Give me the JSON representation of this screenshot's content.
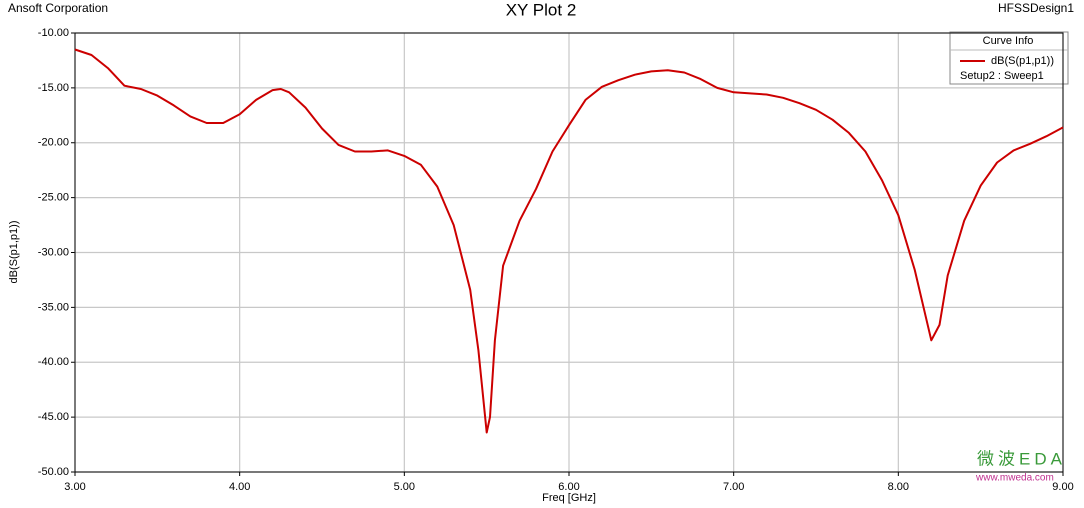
{
  "chart_data": {
    "type": "line",
    "title": "XY Plot 2",
    "company": "Ansoft Corporation",
    "design": "HFSSDesign1",
    "xlabel": "Freq [GHz]",
    "ylabel": "dB(S(p1,p1))",
    "legend_title": "Curve Info",
    "legend_subtitle": "Setup2 : Sweep1",
    "legend": "top-right",
    "grid": true,
    "annotations": [
      "微波EDA",
      "www.mweda.com"
    ],
    "xlim": [
      3,
      9
    ],
    "ylim": [
      -50,
      -10
    ],
    "xticks": [
      {
        "value": 3,
        "label": "3.00"
      },
      {
        "value": 4,
        "label": "4.00"
      },
      {
        "value": 5,
        "label": "5.00"
      },
      {
        "value": 6,
        "label": "6.00"
      },
      {
        "value": 7,
        "label": "7.00"
      },
      {
        "value": 8,
        "label": "8.00"
      },
      {
        "value": 9,
        "label": "9.00"
      }
    ],
    "yticks": [
      {
        "value": -10,
        "label": "-10.00"
      },
      {
        "value": -15,
        "label": "-15.00"
      },
      {
        "value": -20,
        "label": "-20.00"
      },
      {
        "value": -25,
        "label": "-25.00"
      },
      {
        "value": -30,
        "label": "-30.00"
      },
      {
        "value": -35,
        "label": "-35.00"
      },
      {
        "value": -40,
        "label": "-40.00"
      },
      {
        "value": -45,
        "label": "-45.00"
      },
      {
        "value": -50,
        "label": "-50.00"
      }
    ],
    "x": [
      3.0,
      3.1,
      3.2,
      3.3,
      3.4,
      3.5,
      3.6,
      3.7,
      3.8,
      3.9,
      4.0,
      4.1,
      4.2,
      4.25,
      4.3,
      4.4,
      4.5,
      4.6,
      4.7,
      4.8,
      4.9,
      5.0,
      5.1,
      5.2,
      5.3,
      5.4,
      5.45,
      5.5,
      5.52,
      5.55,
      5.6,
      5.7,
      5.8,
      5.9,
      6.0,
      6.1,
      6.2,
      6.3,
      6.4,
      6.5,
      6.6,
      6.7,
      6.8,
      6.9,
      7.0,
      7.1,
      7.2,
      7.3,
      7.4,
      7.5,
      7.6,
      7.7,
      7.8,
      7.9,
      8.0,
      8.1,
      8.2,
      8.25,
      8.3,
      8.4,
      8.5,
      8.6,
      8.7,
      8.8,
      8.9,
      9.0
    ],
    "series": [
      {
        "name": "dB(S(p1,p1))",
        "color": "#cc0000",
        "values": [
          -11.5,
          -12.0,
          -13.2,
          -14.8,
          -15.1,
          -15.7,
          -16.6,
          -17.6,
          -18.2,
          -18.2,
          -17.4,
          -16.1,
          -15.2,
          -15.1,
          -15.4,
          -16.8,
          -18.7,
          -20.2,
          -20.8,
          -20.8,
          -20.7,
          -21.2,
          -22.0,
          -24.0,
          -27.5,
          -33.4,
          -38.9,
          -46.4,
          -45.0,
          -38.0,
          -31.2,
          -27.1,
          -24.2,
          -20.8,
          -18.4,
          -16.1,
          -14.9,
          -14.3,
          -13.8,
          -13.5,
          -13.4,
          -13.6,
          -14.2,
          -15.0,
          -15.4,
          -15.5,
          -15.6,
          -15.9,
          -16.4,
          -17.0,
          -17.9,
          -19.1,
          -20.8,
          -23.4,
          -26.6,
          -31.6,
          -38.0,
          -36.6,
          -32.1,
          -27.1,
          -23.9,
          -21.8,
          -20.7,
          -20.1,
          -19.4,
          -18.6
        ]
      }
    ]
  }
}
